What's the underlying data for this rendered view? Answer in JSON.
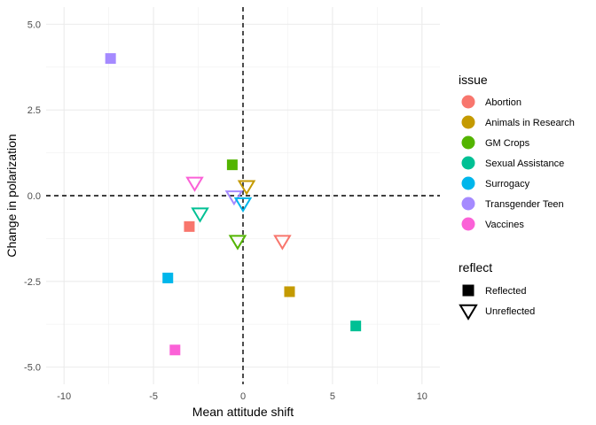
{
  "chart_data": {
    "type": "scatter",
    "title": "",
    "xlabel": "Mean attitude shift",
    "ylabel": "Change in polarization",
    "xlim": [
      -11,
      11
    ],
    "ylim": [
      -5.5,
      5.5
    ],
    "x_ticks": [
      -10,
      -5,
      0,
      5,
      10
    ],
    "x_tick_labels": [
      "-10",
      "-5",
      "0",
      "5",
      "10"
    ],
    "y_ticks": [
      -5.0,
      -2.5,
      0.0,
      2.5,
      5.0
    ],
    "y_tick_labels": [
      "-5.0",
      "-2.5",
      "0.0",
      "2.5",
      "5.0"
    ],
    "grid": true,
    "reference_lines": [
      {
        "axis": "x",
        "value": 0,
        "style": "dashed"
      },
      {
        "axis": "y",
        "value": 0,
        "style": "dashed"
      }
    ],
    "legend_position": "right",
    "color_legend": {
      "title": "issue",
      "items": [
        {
          "label": "Abortion",
          "color": "#F8766D"
        },
        {
          "label": "Animals in Research",
          "color": "#C49A00"
        },
        {
          "label": "GM Crops",
          "color": "#53B400"
        },
        {
          "label": "Sexual Assistance",
          "color": "#00C094"
        },
        {
          "label": "Surrogacy",
          "color": "#00B6EB"
        },
        {
          "label": "Transgender Teen",
          "color": "#A58AFF"
        },
        {
          "label": "Vaccines",
          "color": "#FB61D7"
        }
      ]
    },
    "shape_legend": {
      "title": "reflect",
      "items": [
        {
          "label": "Reflected",
          "shape": "square"
        },
        {
          "label": "Unreflected",
          "shape": "triangle-down"
        }
      ]
    },
    "points": [
      {
        "issue": "Transgender Teen",
        "reflect": "Reflected",
        "x": -7.4,
        "y": 4.0
      },
      {
        "issue": "GM Crops",
        "reflect": "Reflected",
        "x": -0.6,
        "y": 0.9
      },
      {
        "issue": "Abortion",
        "reflect": "Reflected",
        "x": -3.0,
        "y": -0.9
      },
      {
        "issue": "Surrogacy",
        "reflect": "Reflected",
        "x": -4.2,
        "y": -2.4
      },
      {
        "issue": "Animals in Research",
        "reflect": "Reflected",
        "x": 2.6,
        "y": -2.8
      },
      {
        "issue": "Sexual Assistance",
        "reflect": "Reflected",
        "x": 6.3,
        "y": -3.8
      },
      {
        "issue": "Vaccines",
        "reflect": "Reflected",
        "x": -3.8,
        "y": -4.5
      },
      {
        "issue": "Vaccines",
        "reflect": "Unreflected",
        "x": -2.7,
        "y": 0.4
      },
      {
        "issue": "Animals in Research",
        "reflect": "Unreflected",
        "x": 0.2,
        "y": 0.3
      },
      {
        "issue": "Transgender Teen",
        "reflect": "Unreflected",
        "x": -0.5,
        "y": 0.0
      },
      {
        "issue": "Surrogacy",
        "reflect": "Unreflected",
        "x": 0.0,
        "y": -0.2
      },
      {
        "issue": "Sexual Assistance",
        "reflect": "Unreflected",
        "x": -2.4,
        "y": -0.5
      },
      {
        "issue": "GM Crops",
        "reflect": "Unreflected",
        "x": -0.3,
        "y": -1.3
      },
      {
        "issue": "Abortion",
        "reflect": "Unreflected",
        "x": 2.2,
        "y": -1.3
      }
    ]
  }
}
